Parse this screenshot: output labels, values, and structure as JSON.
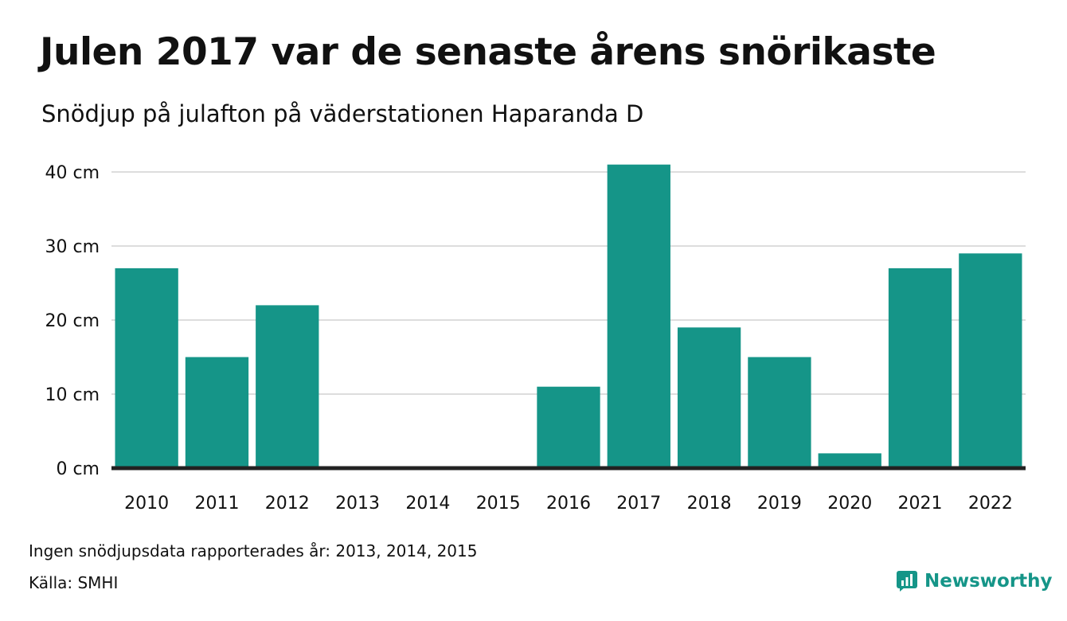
{
  "title": "Julen 2017 var de senaste årens snörikaste",
  "subtitle": "Snödjup på julafton på väderstationen Haparanda D",
  "note": "Ingen snödjupsdata rapporterades år: 2013, 2014, 2015",
  "source": "Källa: SMHI",
  "brand": {
    "name": "Newsworthy",
    "icon": "newsworthy-logo-icon"
  },
  "colors": {
    "bar": "#159588",
    "grid": "#dddddd",
    "baseline": "#222222"
  },
  "chart_data": {
    "type": "bar",
    "categories": [
      "2010",
      "2011",
      "2012",
      "2013",
      "2014",
      "2015",
      "2016",
      "2017",
      "2018",
      "2019",
      "2020",
      "2021",
      "2022"
    ],
    "values": [
      27,
      15,
      22,
      null,
      null,
      null,
      11,
      41,
      19,
      15,
      2,
      27,
      29
    ],
    "ylim": [
      0,
      40
    ],
    "yticks": [
      0,
      10,
      20,
      30,
      40
    ],
    "ytick_labels": [
      "0 cm",
      "10 cm",
      "20 cm",
      "30 cm",
      "40 cm"
    ],
    "grid": true
  }
}
